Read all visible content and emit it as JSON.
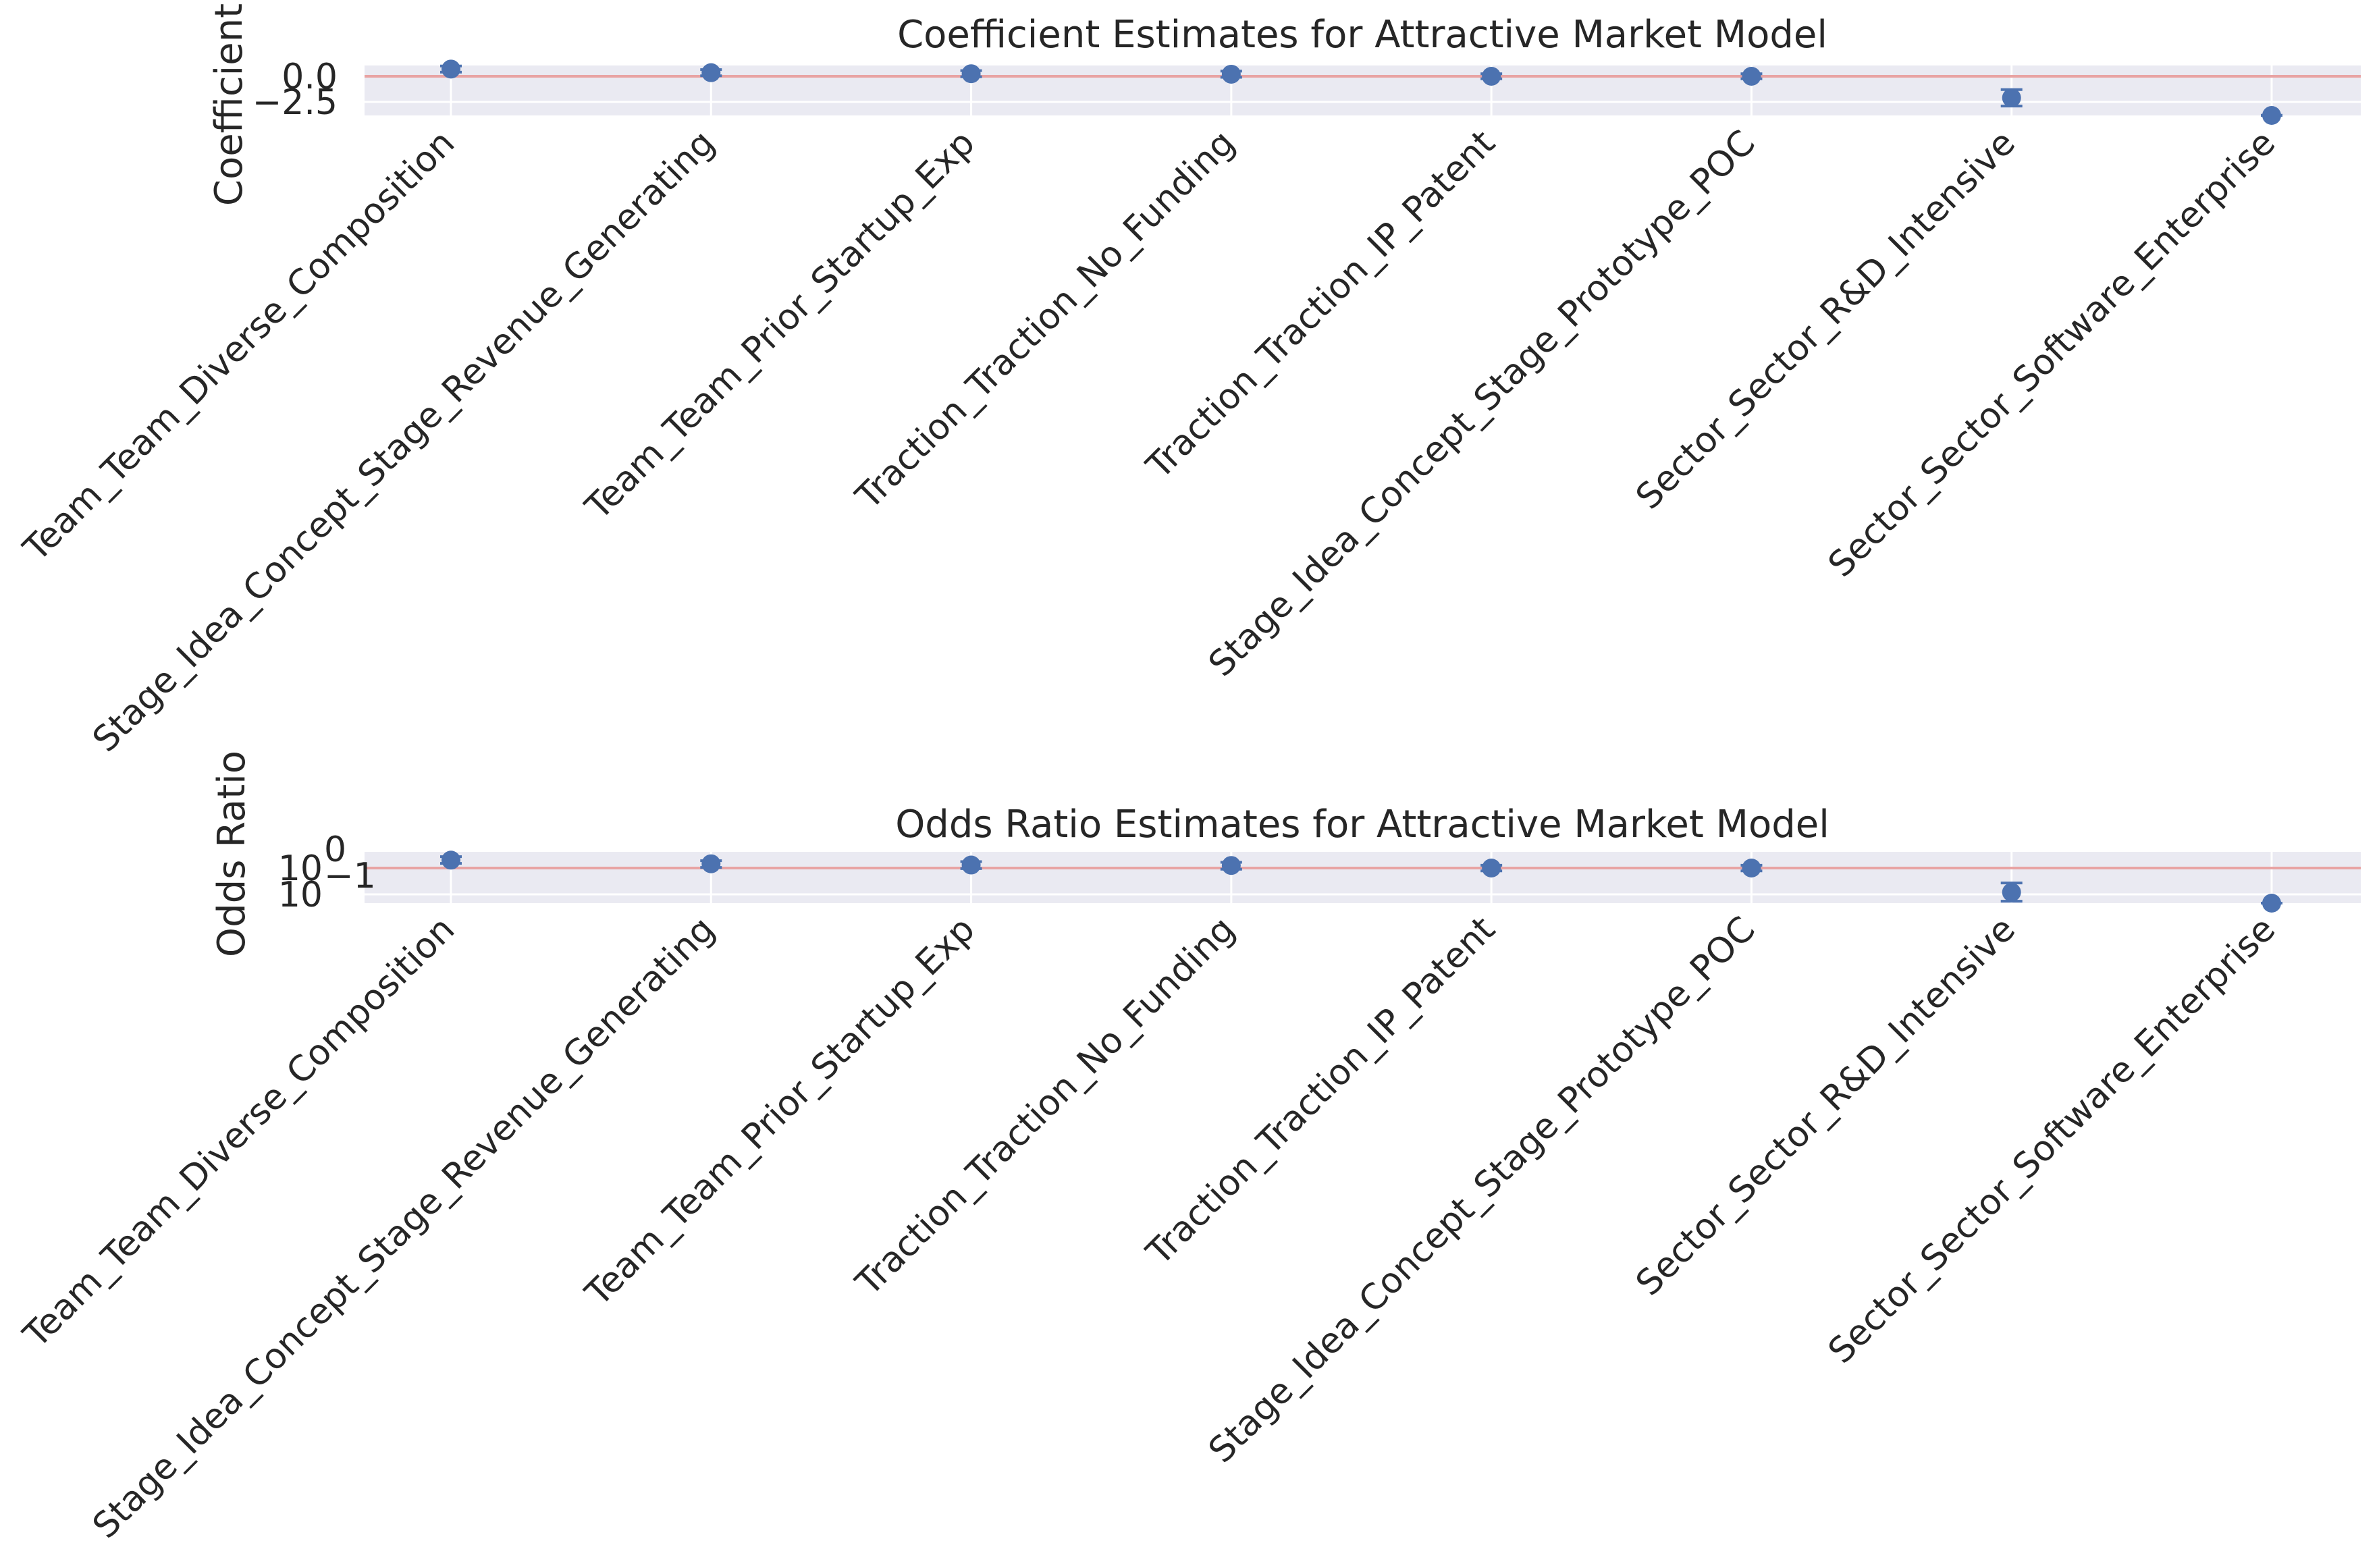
{
  "chart_data": [
    {
      "type": "scatter",
      "title": "Coefficient Estimates for Attractive Market Model",
      "ylabel": "Coefficient Value",
      "ylabel_visible": "Coefficient Va",
      "xlabel": "",
      "categories": [
        "Team_Team_Diverse_Composition",
        "Stage_Idea_Concept_Stage_Revenue_Generating",
        "Team_Team_Prior_Startup_Exp",
        "Traction_Traction_No_Funding",
        "Traction_Traction_IP_Patent",
        "Stage_Idea_Concept_Stage_Prototype_POC",
        "Sector_Sector_R&D_Intensive",
        "Sector_Sector_Software_Enterprise"
      ],
      "values": [
        0.7,
        0.35,
        0.25,
        0.2,
        0.0,
        0.0,
        -2.1,
        -4.3
      ],
      "ci_low": [
        0.4,
        0.05,
        -0.05,
        -0.1,
        -0.25,
        -0.25,
        -2.9,
        -4.8
      ],
      "ci_high": [
        1.0,
        0.65,
        0.55,
        0.5,
        0.25,
        0.25,
        -1.3,
        -3.8
      ],
      "reference_line": 0.0,
      "ylim": [
        -4.5,
        1.0
      ],
      "yticks": [
        0.0,
        -2.5
      ],
      "ytick_labels": [
        "0.0",
        "−2.5"
      ],
      "grid": true,
      "colors": {
        "marker": "#4c72b0",
        "reference": "#e8a3a3",
        "background": "#eaeaf2",
        "grid": "#ffffff"
      }
    },
    {
      "type": "scatter",
      "title": "Odds Ratio Estimates for Attractive Market Model",
      "ylabel": "Odds Ratio",
      "xlabel": "",
      "yscale": "log",
      "categories": [
        "Team_Team_Diverse_Composition",
        "Stage_Idea_Concept_Stage_Revenue_Generating",
        "Team_Team_Prior_Startup_Exp",
        "Traction_Traction_No_Funding",
        "Traction_Traction_IP_Patent",
        "Stage_Idea_Concept_Stage_Prototype_POC",
        "Sector_Sector_R&D_Intensive",
        "Sector_Sector_Software_Enterprise"
      ],
      "values": [
        2.0,
        1.45,
        1.3,
        1.25,
        1.0,
        1.0,
        0.12,
        0.015
      ],
      "ci_low": [
        1.5,
        1.05,
        0.95,
        0.9,
        0.78,
        0.78,
        0.055,
        0.008
      ],
      "ci_high": [
        2.7,
        1.9,
        1.75,
        1.65,
        1.28,
        1.28,
        0.27,
        0.022
      ],
      "reference_line": 1.0,
      "ylim": [
        0.01,
        2.0
      ],
      "yticks": [
        1.0,
        0.1
      ],
      "ytick_labels_base": [
        "10",
        "10"
      ],
      "ytick_labels_exp": [
        "0",
        "−1"
      ],
      "grid": true,
      "colors": {
        "marker": "#4c72b0",
        "reference": "#e8a3a3",
        "background": "#eaeaf2",
        "grid": "#ffffff"
      }
    }
  ]
}
